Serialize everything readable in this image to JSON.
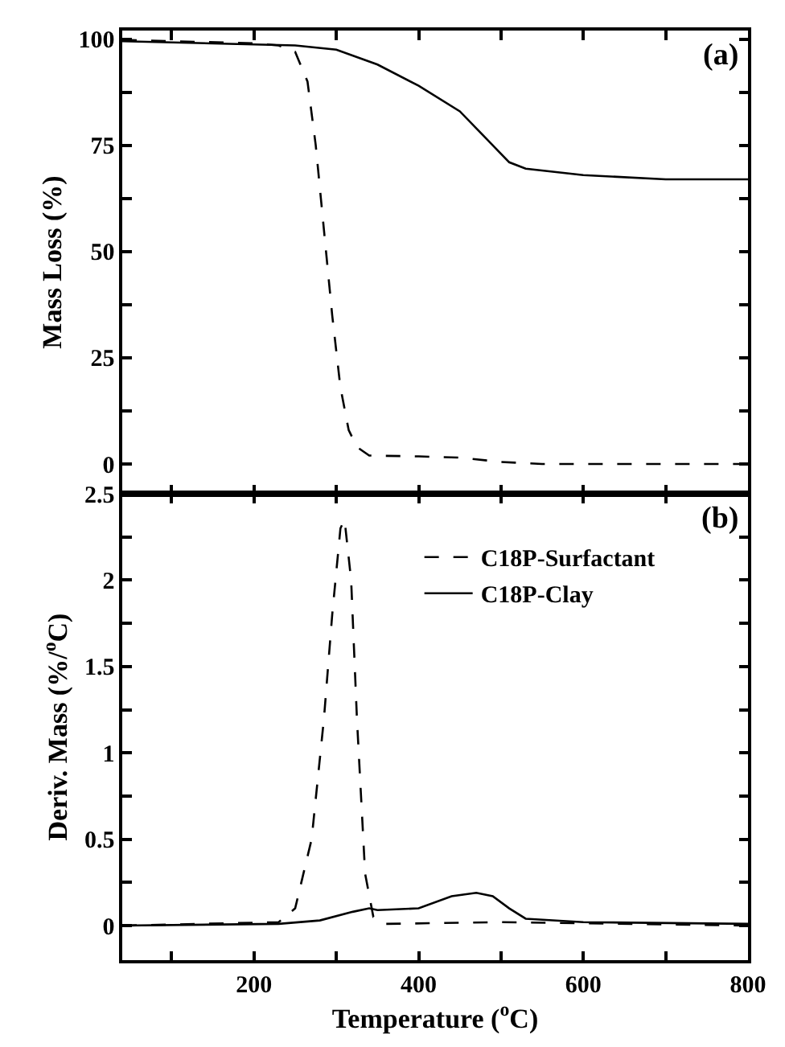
{
  "chart_data": [
    {
      "type": "line",
      "ylabel": "Mass Loss (%)",
      "annotations": [
        "(a)"
      ],
      "xlim": [
        40,
        800
      ],
      "ylim": [
        -7,
        102
      ],
      "xticks": [
        {
          "value": 100,
          "label": null
        },
        {
          "value": 200,
          "label": null
        },
        {
          "value": 300,
          "label": null
        },
        {
          "value": 400,
          "label": null
        },
        {
          "value": 500,
          "label": null
        },
        {
          "value": 600,
          "label": null
        },
        {
          "value": 700,
          "label": null
        },
        {
          "value": 800,
          "label": null
        }
      ],
      "yticks": [
        0,
        {
          "value": 12.5,
          "label": null
        },
        25,
        {
          "value": 37.5,
          "label": null
        },
        50,
        {
          "value": 62.5,
          "label": null
        },
        75,
        {
          "value": 87.5,
          "label": null
        },
        100
      ],
      "tick_labels": "y",
      "legend": false,
      "series": [
        {
          "color": "#000000",
          "line_style": "dashed",
          "x": [
            40,
            200,
            230,
            250,
            265,
            275,
            285,
            295,
            305,
            315,
            325,
            340,
            400,
            450,
            500,
            550,
            800
          ],
          "values": [
            99.8,
            99,
            98.5,
            97,
            90,
            75,
            55,
            35,
            18,
            8,
            4,
            2,
            1.8,
            1.5,
            0.5,
            0,
            0
          ]
        },
        {
          "color": "#000000",
          "line_style": "solid",
          "x": [
            40,
            250,
            300,
            350,
            400,
            450,
            480,
            510,
            530,
            600,
            700,
            800
          ],
          "values": [
            99.5,
            98.5,
            97.5,
            94,
            89,
            83,
            77,
            71,
            69.5,
            68,
            67,
            67
          ]
        }
      ]
    },
    {
      "type": "line",
      "xlabel": "Temperature ($^{o}$C)",
      "ylabel": "Deriv. Mass (%/$^{o}$C)",
      "annotations": [
        "(b)"
      ],
      "xlim": [
        40,
        800
      ],
      "ylim": [
        -0.2,
        2.5
      ],
      "xticks": [
        {
          "value": 100,
          "label": null
        },
        200,
        {
          "value": 300,
          "label": null
        },
        400,
        {
          "value": 500,
          "label": null
        },
        600,
        {
          "value": 700,
          "label": null
        },
        800
      ],
      "yticks": [
        0,
        {
          "value": 0.25,
          "label": null
        },
        0.5,
        {
          "value": 0.75,
          "label": null
        },
        1,
        {
          "value": 1.25,
          "label": null
        },
        1.5,
        {
          "value": 1.75,
          "label": null
        },
        2,
        {
          "value": 2.25,
          "label": null
        },
        2.5
      ],
      "legend": "top right",
      "series": [
        {
          "name": "C18P-Surfactant",
          "color": "#000000",
          "line_style": "dashed",
          "x": [
            40,
            230,
            250,
            270,
            285,
            295,
            305,
            310,
            318,
            325,
            335,
            345,
            360,
            500,
            800
          ],
          "values": [
            0,
            0.02,
            0.1,
            0.5,
            1.2,
            1.8,
            2.3,
            2.35,
            2.0,
            1.2,
            0.3,
            0.05,
            0.01,
            0.02,
            0
          ]
        },
        {
          "name": "C18P-Clay",
          "color": "#000000",
          "line_style": "solid",
          "x": [
            40,
            230,
            280,
            320,
            340,
            350,
            400,
            440,
            470,
            490,
            510,
            530,
            600,
            800
          ],
          "values": [
            0,
            0.01,
            0.03,
            0.08,
            0.1,
            0.09,
            0.1,
            0.17,
            0.19,
            0.17,
            0.1,
            0.04,
            0.02,
            0.01
          ]
        }
      ]
    }
  ]
}
